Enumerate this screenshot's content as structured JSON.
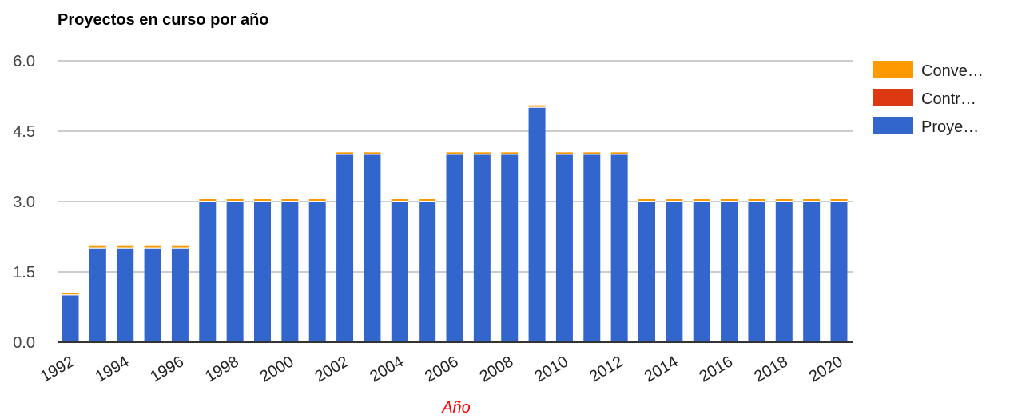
{
  "chart_data": {
    "type": "bar",
    "stacked": true,
    "title": "Proyectos en curso por año",
    "xlabel": "Año",
    "xlabel_color": "#ff0000",
    "ylabel": "",
    "ylim": [
      0,
      6
    ],
    "y_ticks": [
      "0.0",
      "1.5",
      "3.0",
      "4.5",
      "6.0"
    ],
    "grid": true,
    "legend_position": "right",
    "categories": [
      "1992",
      "1993",
      "1994",
      "1995",
      "1996",
      "1997",
      "1998",
      "1999",
      "2000",
      "2001",
      "2002",
      "2003",
      "2004",
      "2005",
      "2006",
      "2007",
      "2008",
      "2009",
      "2010",
      "2011",
      "2012",
      "2013",
      "2014",
      "2015",
      "2016",
      "2017",
      "2018",
      "2019",
      "2020"
    ],
    "x_tick_labels": [
      "1992",
      "1994",
      "1996",
      "1998",
      "2000",
      "2002",
      "2004",
      "2006",
      "2008",
      "2010",
      "2012",
      "2014",
      "2016",
      "2018",
      "2020"
    ],
    "series": [
      {
        "name": "Proye…",
        "color": "#3366cc",
        "values": [
          1,
          2,
          2,
          2,
          2,
          3,
          3,
          3,
          3,
          3,
          4,
          4,
          3,
          3,
          4,
          4,
          4,
          5,
          4,
          4,
          4,
          3,
          3,
          3,
          3,
          3,
          3,
          3,
          3
        ]
      },
      {
        "name": "Contr…",
        "color": "#dc3912",
        "values": [
          0,
          0,
          0,
          0,
          0,
          0,
          0,
          0,
          0,
          0,
          0,
          0,
          0,
          0,
          0,
          0,
          0,
          0,
          0,
          0,
          0,
          0,
          0,
          0,
          0,
          0,
          0,
          0,
          0
        ]
      },
      {
        "name": "Conve…",
        "color": "#ff9900",
        "values": [
          0,
          0,
          0,
          0,
          0,
          0,
          0,
          0,
          0,
          0,
          0,
          0,
          0,
          0,
          0,
          0,
          0,
          0,
          0,
          0,
          0,
          0,
          0,
          0,
          0,
          0,
          0,
          0,
          0
        ]
      }
    ],
    "legend_order": [
      "Conve…",
      "Contr…",
      "Proye…"
    ]
  }
}
